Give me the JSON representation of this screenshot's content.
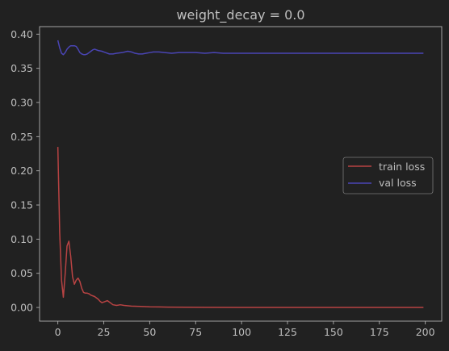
{
  "chart_data": {
    "type": "line",
    "title": "weight_decay = 0.0",
    "xlabel": "",
    "ylabel": "",
    "xlim": [
      -9.95,
      208.95
    ],
    "ylim": [
      -0.02,
      0.411
    ],
    "xticks": [
      0,
      25,
      50,
      75,
      100,
      125,
      150,
      175,
      200
    ],
    "yticks": [
      0.0,
      0.05,
      0.1,
      0.15,
      0.2,
      0.25,
      0.3,
      0.35,
      0.4
    ],
    "xtick_labels": [
      "0",
      "25",
      "50",
      "75",
      "100",
      "125",
      "150",
      "175",
      "200"
    ],
    "ytick_labels": [
      "0.00",
      "0.05",
      "0.10",
      "0.15",
      "0.20",
      "0.25",
      "0.30",
      "0.35",
      "0.40"
    ],
    "grid": false,
    "legend_position": "center-right",
    "background": "#212121",
    "axes_color": "#b0b0b0",
    "series": [
      {
        "name": "train loss",
        "color": "#b84343",
        "points": [
          [
            0,
            0.235
          ],
          [
            1,
            0.11
          ],
          [
            2,
            0.04
          ],
          [
            3,
            0.015
          ],
          [
            4,
            0.05
          ],
          [
            5,
            0.09
          ],
          [
            6,
            0.097
          ],
          [
            7,
            0.075
          ],
          [
            8,
            0.045
          ],
          [
            9,
            0.034
          ],
          [
            10,
            0.04
          ],
          [
            11,
            0.043
          ],
          [
            12,
            0.038
          ],
          [
            13,
            0.028
          ],
          [
            14,
            0.022
          ],
          [
            15,
            0.021
          ],
          [
            16,
            0.021
          ],
          [
            17,
            0.02
          ],
          [
            18,
            0.018
          ],
          [
            20,
            0.016
          ],
          [
            22,
            0.012
          ],
          [
            23,
            0.009
          ],
          [
            24,
            0.007
          ],
          [
            25,
            0.008
          ],
          [
            26,
            0.009
          ],
          [
            27,
            0.01
          ],
          [
            28,
            0.008
          ],
          [
            30,
            0.004
          ],
          [
            32,
            0.003
          ],
          [
            34,
            0.004
          ],
          [
            36,
            0.003
          ],
          [
            40,
            0.002
          ],
          [
            45,
            0.0015
          ],
          [
            50,
            0.001
          ],
          [
            55,
            0.0008
          ],
          [
            60,
            0.0005
          ],
          [
            70,
            0.0003
          ],
          [
            80,
            0.0002
          ],
          [
            100,
            0.0001
          ],
          [
            150,
            0.0001
          ],
          [
            199,
            0.0001
          ]
        ]
      },
      {
        "name": "val loss",
        "color": "#4a45b5",
        "points": [
          [
            0,
            0.391
          ],
          [
            1,
            0.38
          ],
          [
            2,
            0.372
          ],
          [
            3,
            0.37
          ],
          [
            4,
            0.373
          ],
          [
            5,
            0.378
          ],
          [
            6,
            0.381
          ],
          [
            7,
            0.383
          ],
          [
            8,
            0.383
          ],
          [
            9,
            0.383
          ],
          [
            10,
            0.382
          ],
          [
            11,
            0.378
          ],
          [
            12,
            0.373
          ],
          [
            13,
            0.371
          ],
          [
            14,
            0.37
          ],
          [
            15,
            0.37
          ],
          [
            16,
            0.371
          ],
          [
            17,
            0.373
          ],
          [
            18,
            0.375
          ],
          [
            19,
            0.377
          ],
          [
            20,
            0.378
          ],
          [
            21,
            0.377
          ],
          [
            22,
            0.376
          ],
          [
            24,
            0.375
          ],
          [
            26,
            0.373
          ],
          [
            28,
            0.371
          ],
          [
            30,
            0.371
          ],
          [
            32,
            0.372
          ],
          [
            35,
            0.373
          ],
          [
            38,
            0.375
          ],
          [
            40,
            0.374
          ],
          [
            42,
            0.372
          ],
          [
            44,
            0.371
          ],
          [
            46,
            0.371
          ],
          [
            48,
            0.372
          ],
          [
            50,
            0.373
          ],
          [
            52,
            0.374
          ],
          [
            55,
            0.374
          ],
          [
            58,
            0.373
          ],
          [
            62,
            0.372
          ],
          [
            66,
            0.373
          ],
          [
            70,
            0.373
          ],
          [
            75,
            0.373
          ],
          [
            80,
            0.372
          ],
          [
            85,
            0.373
          ],
          [
            90,
            0.372
          ],
          [
            100,
            0.372
          ],
          [
            120,
            0.372
          ],
          [
            150,
            0.372
          ],
          [
            199,
            0.372
          ]
        ]
      }
    ]
  }
}
